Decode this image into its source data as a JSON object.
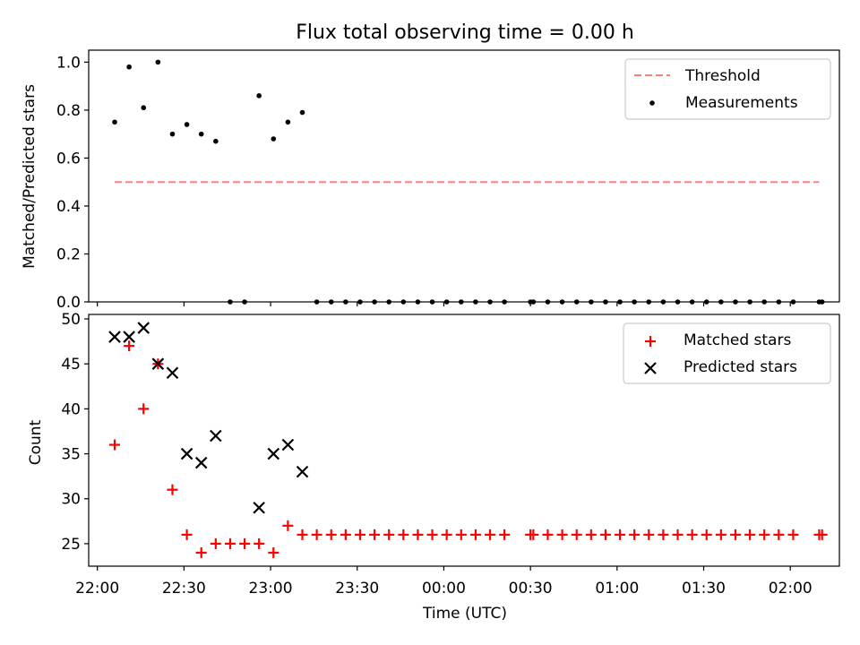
{
  "chart_data": [
    {
      "type": "scatter",
      "title": "Flux total observing time = 0.00 h",
      "xlabel": "",
      "ylabel": "Matched/Predicted stars",
      "ylim": [
        0.0,
        1.05
      ],
      "yticks": [
        "0.0",
        "0.2",
        "0.4",
        "0.6",
        "0.8",
        "1.0"
      ],
      "legend_position": "top-right",
      "series": [
        {
          "name": "Threshold",
          "kind": "dashed-line",
          "color": "#ff7f7f",
          "points": [
            [
              "22:06",
              0.5
            ],
            [
              "02:10",
              0.5
            ]
          ]
        },
        {
          "name": "Measurements",
          "kind": "dot",
          "color": "#000000",
          "points": [
            [
              "22:06",
              0.75
            ],
            [
              "22:11",
              0.98
            ],
            [
              "22:16",
              0.81
            ],
            [
              "22:21",
              1.0
            ],
            [
              "22:26",
              0.7
            ],
            [
              "22:31",
              0.74
            ],
            [
              "22:36",
              0.7
            ],
            [
              "22:41",
              0.67
            ],
            [
              "22:56",
              0.86
            ],
            [
              "23:01",
              0.68
            ],
            [
              "23:06",
              0.75
            ],
            [
              "23:11",
              0.79
            ],
            [
              "22:46",
              0.0
            ],
            [
              "22:51",
              0.0
            ],
            [
              "23:16",
              0.0
            ],
            [
              "23:21",
              0.0
            ],
            [
              "23:26",
              0.0
            ],
            [
              "23:31",
              0.0
            ],
            [
              "23:36",
              0.0
            ],
            [
              "23:41",
              0.0
            ],
            [
              "23:46",
              0.0
            ],
            [
              "23:51",
              0.0
            ],
            [
              "23:56",
              0.0
            ],
            [
              "00:01",
              0.0
            ],
            [
              "00:06",
              0.0
            ],
            [
              "00:11",
              0.0
            ],
            [
              "00:16",
              0.0
            ],
            [
              "00:21",
              0.0
            ],
            [
              "00:30",
              0.0
            ],
            [
              "00:31",
              0.0
            ],
            [
              "00:36",
              0.0
            ],
            [
              "00:41",
              0.0
            ],
            [
              "00:46",
              0.0
            ],
            [
              "00:51",
              0.0
            ],
            [
              "00:56",
              0.0
            ],
            [
              "01:01",
              0.0
            ],
            [
              "01:06",
              0.0
            ],
            [
              "01:11",
              0.0
            ],
            [
              "01:16",
              0.0
            ],
            [
              "01:21",
              0.0
            ],
            [
              "01:26",
              0.0
            ],
            [
              "01:31",
              0.0
            ],
            [
              "01:36",
              0.0
            ],
            [
              "01:41",
              0.0
            ],
            [
              "01:46",
              0.0
            ],
            [
              "01:51",
              0.0
            ],
            [
              "01:56",
              0.0
            ],
            [
              "02:01",
              0.0
            ],
            [
              "02:10",
              0.0
            ],
            [
              "02:11",
              0.0
            ]
          ]
        }
      ]
    },
    {
      "type": "scatter",
      "title": "",
      "xlabel": "Time (UTC)",
      "ylabel": "Count",
      "ylim": [
        22.5,
        50.5
      ],
      "yticks": [
        "25",
        "30",
        "35",
        "40",
        "45",
        "50"
      ],
      "xticks": [
        "22:00",
        "22:30",
        "23:00",
        "23:30",
        "00:00",
        "00:30",
        "01:00",
        "01:30",
        "02:00"
      ],
      "legend_position": "top-right",
      "series": [
        {
          "name": "Matched stars",
          "kind": "plus",
          "color": "#ff0000",
          "points": [
            [
              "22:06",
              36
            ],
            [
              "22:11",
              47
            ],
            [
              "22:16",
              40
            ],
            [
              "22:21",
              45
            ],
            [
              "22:26",
              31
            ],
            [
              "22:31",
              26
            ],
            [
              "22:36",
              24
            ],
            [
              "22:41",
              25
            ],
            [
              "22:46",
              25
            ],
            [
              "22:51",
              25
            ],
            [
              "22:56",
              25
            ],
            [
              "23:01",
              24
            ],
            [
              "23:06",
              27
            ],
            [
              "23:11",
              26
            ],
            [
              "23:16",
              26
            ],
            [
              "23:21",
              26
            ],
            [
              "23:26",
              26
            ],
            [
              "23:31",
              26
            ],
            [
              "23:36",
              26
            ],
            [
              "23:41",
              26
            ],
            [
              "23:46",
              26
            ],
            [
              "23:51",
              26
            ],
            [
              "23:56",
              26
            ],
            [
              "00:01",
              26
            ],
            [
              "00:06",
              26
            ],
            [
              "00:11",
              26
            ],
            [
              "00:16",
              26
            ],
            [
              "00:21",
              26
            ],
            [
              "00:30",
              26
            ],
            [
              "00:31",
              26
            ],
            [
              "00:36",
              26
            ],
            [
              "00:41",
              26
            ],
            [
              "00:46",
              26
            ],
            [
              "00:51",
              26
            ],
            [
              "00:56",
              26
            ],
            [
              "01:01",
              26
            ],
            [
              "01:06",
              26
            ],
            [
              "01:11",
              26
            ],
            [
              "01:16",
              26
            ],
            [
              "01:21",
              26
            ],
            [
              "01:26",
              26
            ],
            [
              "01:31",
              26
            ],
            [
              "01:36",
              26
            ],
            [
              "01:41",
              26
            ],
            [
              "01:46",
              26
            ],
            [
              "01:51",
              26
            ],
            [
              "01:56",
              26
            ],
            [
              "02:01",
              26
            ],
            [
              "02:10",
              26
            ],
            [
              "02:11",
              26
            ]
          ]
        },
        {
          "name": "Predicted stars",
          "kind": "x",
          "color": "#000000",
          "points": [
            [
              "22:06",
              48
            ],
            [
              "22:11",
              48
            ],
            [
              "22:16",
              49
            ],
            [
              "22:21",
              45
            ],
            [
              "22:26",
              44
            ],
            [
              "22:31",
              35
            ],
            [
              "22:36",
              34
            ],
            [
              "22:41",
              37
            ],
            [
              "22:56",
              29
            ],
            [
              "23:01",
              35
            ],
            [
              "23:06",
              36
            ],
            [
              "23:11",
              33
            ]
          ]
        }
      ]
    }
  ]
}
